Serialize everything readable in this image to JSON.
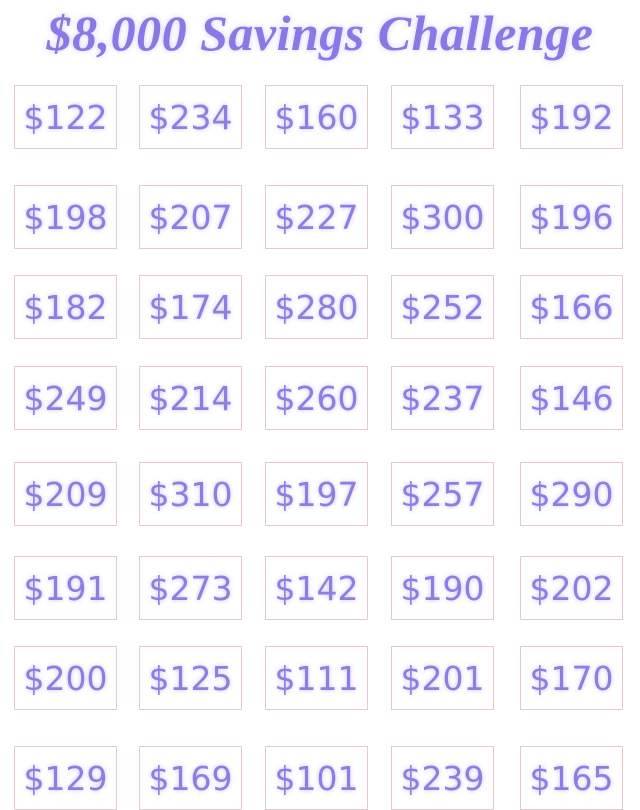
{
  "title": "$8,000 Savings Challenge",
  "grid": {
    "rows": [
      [
        "$122",
        "$234",
        "$160",
        "$133",
        "$192"
      ],
      [
        "$198",
        "$207",
        "$227",
        "$300",
        "$196"
      ],
      [
        "$182",
        "$174",
        "$280",
        "$252",
        "$166"
      ],
      [
        "$249",
        "$214",
        "$260",
        "$237",
        "$146"
      ],
      [
        "$209",
        "$310",
        "$197",
        "$257",
        "$290"
      ],
      [
        "$191",
        "$273",
        "$142",
        "$190",
        "$202"
      ],
      [
        "$200",
        "$125",
        "$111",
        "$201",
        "$170"
      ],
      [
        "$129",
        "$169",
        "$101",
        "$239",
        "$165"
      ]
    ]
  }
}
